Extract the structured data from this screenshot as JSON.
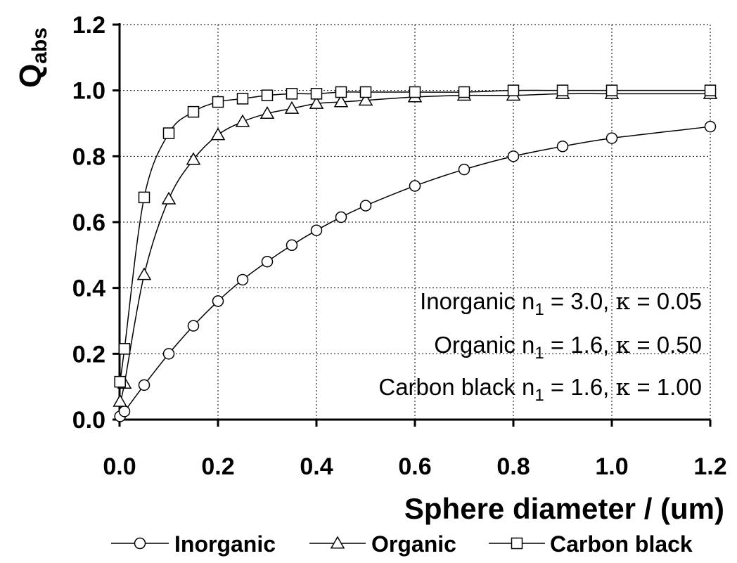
{
  "chart_data": {
    "type": "line",
    "xlabel": "Sphere diameter / (um)",
    "ylabel_main": "Q",
    "ylabel_sub": "abs",
    "xlim": [
      0,
      1.2
    ],
    "ylim": [
      0,
      1.2
    ],
    "xticks": [
      "0.0",
      "0.2",
      "0.4",
      "0.6",
      "0.8",
      "1.0",
      "1.2"
    ],
    "yticks": [
      "0.0",
      "0.2",
      "0.4",
      "0.6",
      "0.8",
      "1.0",
      "1.2"
    ],
    "grid": "dotted",
    "legend_position": "bottom",
    "annotations": [
      {
        "prefix": "Inorganic n",
        "sub": "1",
        "suffix": " = 3.0, ",
        "symbol": "κ",
        "tail": " = 0.05"
      },
      {
        "prefix": "Organic n",
        "sub": "1",
        "suffix": " = 1.6, ",
        "symbol": "κ",
        "tail": " = 0.50"
      },
      {
        "prefix": "Carbon black n",
        "sub": "1",
        "suffix": " = 1.6, ",
        "symbol": "κ",
        "tail": " = 1.00"
      }
    ],
    "series": [
      {
        "name": "Inorganic",
        "marker": "circle",
        "x": [
          0.001,
          0.01,
          0.05,
          0.1,
          0.15,
          0.2,
          0.25,
          0.3,
          0.35,
          0.4,
          0.45,
          0.5,
          0.6,
          0.7,
          0.8,
          0.9,
          1.0,
          1.2
        ],
        "y": [
          0.01,
          0.025,
          0.105,
          0.2,
          0.285,
          0.36,
          0.425,
          0.48,
          0.53,
          0.575,
          0.615,
          0.65,
          0.71,
          0.76,
          0.8,
          0.83,
          0.855,
          0.89
        ]
      },
      {
        "name": "Organic",
        "marker": "triangle",
        "x": [
          0.001,
          0.01,
          0.05,
          0.1,
          0.15,
          0.2,
          0.25,
          0.3,
          0.35,
          0.4,
          0.45,
          0.5,
          0.6,
          0.7,
          0.8,
          0.9,
          1.0,
          1.2
        ],
        "y": [
          0.055,
          0.11,
          0.44,
          0.67,
          0.79,
          0.865,
          0.905,
          0.93,
          0.945,
          0.96,
          0.965,
          0.97,
          0.98,
          0.985,
          0.985,
          0.99,
          0.99,
          0.99
        ]
      },
      {
        "name": "Carbon black",
        "marker": "square",
        "x": [
          0.001,
          0.01,
          0.05,
          0.1,
          0.15,
          0.2,
          0.25,
          0.3,
          0.35,
          0.4,
          0.45,
          0.5,
          0.6,
          0.7,
          0.8,
          0.9,
          1.0,
          1.2
        ],
        "y": [
          0.115,
          0.215,
          0.675,
          0.87,
          0.935,
          0.965,
          0.975,
          0.985,
          0.99,
          0.99,
          0.995,
          0.995,
          0.995,
          0.995,
          1.0,
          1.0,
          1.0,
          1.0
        ]
      }
    ]
  }
}
